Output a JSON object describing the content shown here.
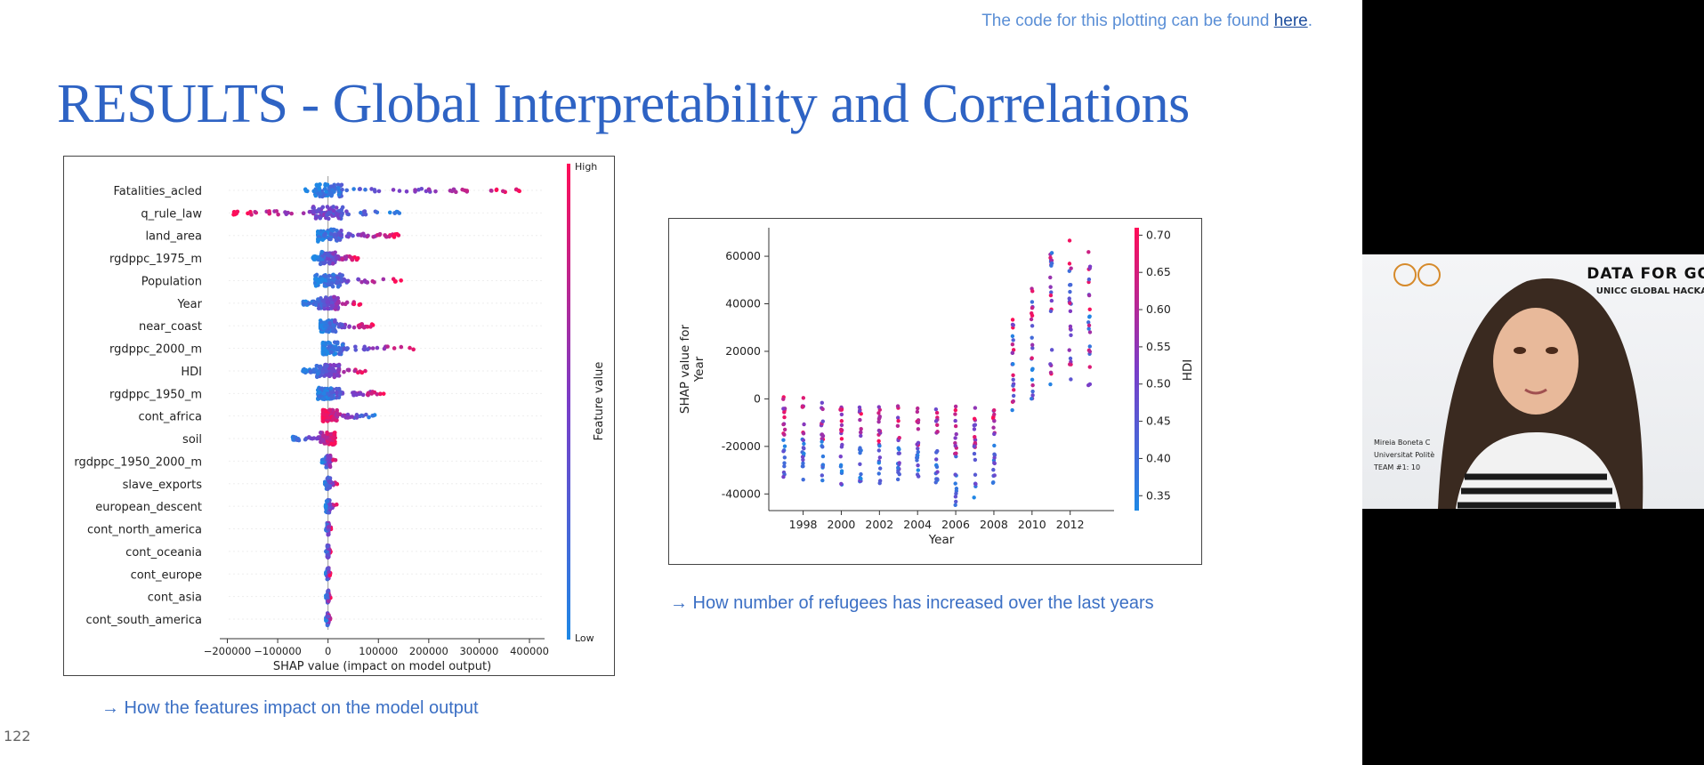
{
  "header": {
    "code_note_prefix": "The code for this plotting can be found ",
    "code_note_link": "here",
    "code_note_suffix": ".",
    "title": "RESULTS - Global Interpretability and Correlations"
  },
  "shap_summary": {
    "features": [
      "Fatalities_acled",
      "q_rule_law",
      "land_area",
      "rgdppc_1975_m",
      "Population",
      "Year",
      "near_coast",
      "rgdppc_2000_m",
      "HDI",
      "rgdppc_1950_m",
      "cont_africa",
      "soil",
      "rgdppc_1950_2000_m",
      "slave_exports",
      "european_descent",
      "cont_north_america",
      "cont_oceania",
      "cont_europe",
      "cont_asia",
      "cont_south_america"
    ],
    "x_ticks": [
      "−200000",
      "−100000",
      "0",
      "100000",
      "200000",
      "300000",
      "400000"
    ],
    "x_tick_values": [
      -200000,
      -100000,
      0,
      100000,
      200000,
      300000,
      400000
    ],
    "xlim": [
      -215000,
      430000
    ],
    "xlabel": "SHAP value (impact on model output)",
    "colorbar_label": "Feature value",
    "colorbar_high": "High",
    "colorbar_low": "Low",
    "caption": "→ How the features impact on the model output"
  },
  "chart_data": {
    "type": "scatter",
    "x": [
      1997,
      1998,
      1999,
      2000,
      2001,
      2002,
      2003,
      2004,
      2005,
      2006,
      2007,
      2008,
      2009,
      2010,
      2011,
      2012,
      2013
    ],
    "y_min": [
      -35000,
      -34000,
      -36000,
      -38000,
      -36000,
      -36000,
      -36000,
      -36000,
      -36000,
      -45000,
      -42000,
      -36000,
      -5000,
      -3000,
      2000,
      5000,
      5000
    ],
    "y_max": [
      1000,
      1000,
      1000,
      -2000,
      -3000,
      -3000,
      -3000,
      -3000,
      -3000,
      -3000,
      -3000,
      -3000,
      36000,
      47000,
      62000,
      67000,
      67000
    ],
    "xlabel": "Year",
    "ylabel": "SHAP value for\nYear",
    "x_ticks": [
      1998,
      2000,
      2002,
      2004,
      2006,
      2008,
      2010,
      2012
    ],
    "y_ticks": [
      -40000,
      -20000,
      0,
      20000,
      40000,
      60000
    ],
    "ylim": [
      -47000,
      72000
    ],
    "xlim": [
      1996.2,
      2014.3
    ],
    "colorbar": {
      "label": "HDI",
      "range": [
        0.33,
        0.71
      ],
      "ticks": [
        "0.35",
        "0.40",
        "0.45",
        "0.50",
        "0.55",
        "0.60",
        "0.65",
        "0.70"
      ],
      "tick_values": [
        0.35,
        0.4,
        0.45,
        0.5,
        0.55,
        0.6,
        0.65,
        0.7
      ]
    },
    "caption": "→ How number of refugees has increased over the last years"
  },
  "slide_number": "122",
  "webcam": {
    "banner_title": "DATA FOR GO",
    "banner_subtitle": "UNICC GLOBAL HACKA",
    "name_line1": "Mireia Boneta C",
    "name_line2": "Universitat Politè",
    "name_line3": "TEAM #1: 10"
  },
  "colors": {
    "title": "#2e63c4",
    "caption": "#3b6fc4",
    "low": "#1e88e5",
    "high": "#ff0d57"
  }
}
